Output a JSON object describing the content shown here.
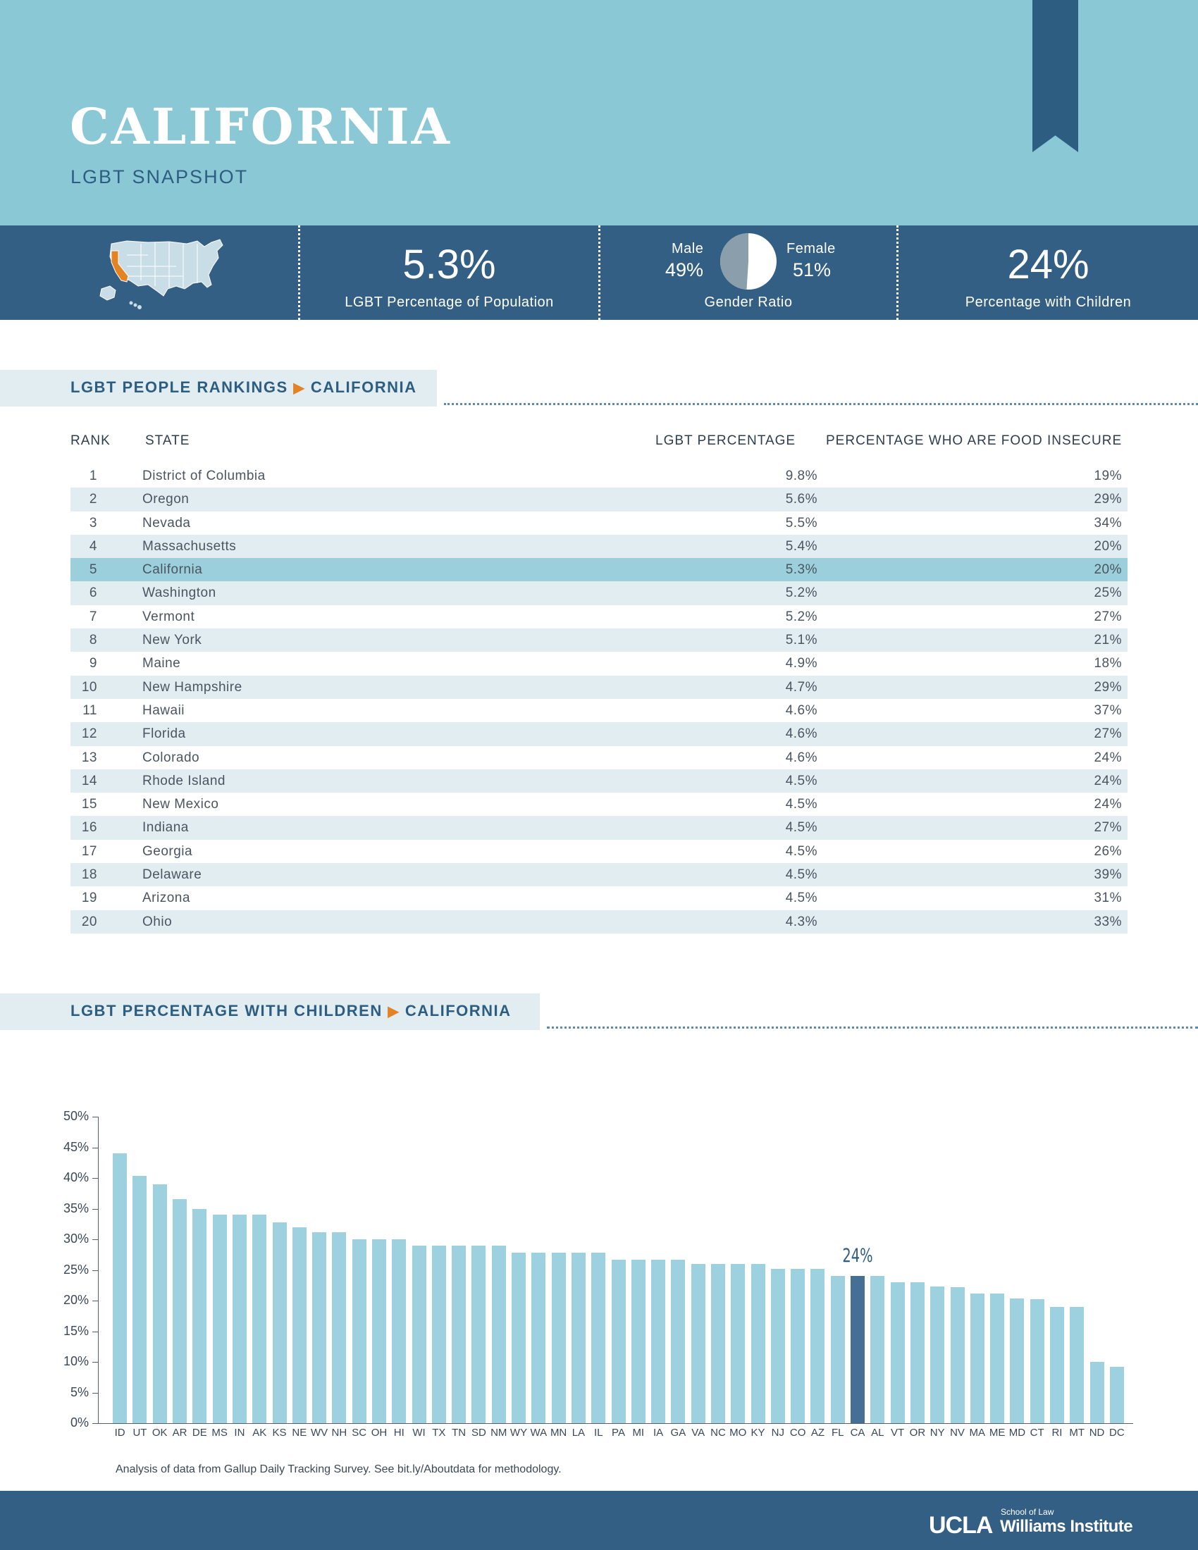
{
  "header": {
    "title": "CALIFORNIA",
    "subtitle": "LGBT SNAPSHOT"
  },
  "stats": {
    "lgbt_pct": "5.3%",
    "lgbt_pct_label": "LGBT Percentage of Population",
    "male_label": "Male",
    "male_pct": "49%",
    "female_label": "Female",
    "female_pct": "51%",
    "gender_label": "Gender Ratio",
    "male_fraction": 0.49,
    "children_pct": "24%",
    "children_label": "Percentage with Children",
    "map_icon": "us-map-icon",
    "highlight_color": "#e38323"
  },
  "rankings": {
    "title": "LGBT PEOPLE RANKINGS",
    "state": "CALIFORNIA",
    "headers": {
      "rank": "RANK",
      "state": "STATE",
      "pct": "LGBT PERCENTAGE",
      "food": "PERCENTAGE WHO ARE FOOD INSECURE"
    },
    "rows": [
      [
        "1",
        "District of Columbia",
        "9.8%",
        "19%"
      ],
      [
        "2",
        "Oregon",
        "5.6%",
        "29%"
      ],
      [
        "3",
        "Nevada",
        "5.5%",
        "34%"
      ],
      [
        "4",
        "Massachusetts",
        "5.4%",
        "20%"
      ],
      [
        "5",
        "California",
        "5.3%",
        "20%"
      ],
      [
        "6",
        "Washington",
        "5.2%",
        "25%"
      ],
      [
        "7",
        "Vermont",
        "5.2%",
        "27%"
      ],
      [
        "8",
        "New York",
        "5.1%",
        "21%"
      ],
      [
        "9",
        "Maine",
        "4.9%",
        "18%"
      ],
      [
        "10",
        "New Hampshire",
        "4.7%",
        "29%"
      ],
      [
        "11",
        "Hawaii",
        "4.6%",
        "37%"
      ],
      [
        "12",
        "Florida",
        "4.6%",
        "27%"
      ],
      [
        "13",
        "Colorado",
        "4.6%",
        "24%"
      ],
      [
        "14",
        "Rhode Island",
        "4.5%",
        "24%"
      ],
      [
        "15",
        "New Mexico",
        "4.5%",
        "24%"
      ],
      [
        "16",
        "Indiana",
        "4.5%",
        "27%"
      ],
      [
        "17",
        "Georgia",
        "4.5%",
        "26%"
      ],
      [
        "18",
        "Delaware",
        "4.5%",
        "39%"
      ],
      [
        "19",
        "Arizona",
        "4.5%",
        "31%"
      ],
      [
        "20",
        "Ohio",
        "4.3%",
        "33%"
      ]
    ],
    "highlight_index": 4
  },
  "children_section": {
    "title": "LGBT PERCENTAGE WITH CHILDREN",
    "state": "CALIFORNIA"
  },
  "chart_data": {
    "type": "bar",
    "categories": [
      "ID",
      "UT",
      "OK",
      "AR",
      "DE",
      "MS",
      "IN",
      "AK",
      "KS",
      "NE",
      "WV",
      "NH",
      "SC",
      "OH",
      "HI",
      "WI",
      "TX",
      "TN",
      "SD",
      "NM",
      "WY",
      "WA",
      "MN",
      "LA",
      "IL",
      "PA",
      "MI",
      "IA",
      "GA",
      "VA",
      "NC",
      "MO",
      "KY",
      "NJ",
      "CO",
      "AZ",
      "FL",
      "CA",
      "AL",
      "VT",
      "OR",
      "NY",
      "NV",
      "MA",
      "ME",
      "MD",
      "CT",
      "RI",
      "MT",
      "ND",
      "DC"
    ],
    "values": [
      44,
      40.3,
      39,
      36.5,
      35,
      34,
      34,
      34,
      32.8,
      32,
      31.2,
      31.2,
      30,
      30,
      30,
      29,
      29,
      29,
      29,
      29,
      27.8,
      27.8,
      27.8,
      27.8,
      27.8,
      26.7,
      26.7,
      26.7,
      26.7,
      26,
      26,
      26,
      26,
      25.2,
      25.2,
      25.2,
      24,
      24,
      24,
      23,
      23,
      22.3,
      22.2,
      21.2,
      21.2,
      20.3,
      20.2,
      19,
      19,
      10,
      9.2
    ],
    "highlight_category": "CA",
    "highlight_label": "24%",
    "ylim": [
      0,
      50
    ],
    "yticks": [
      "0%",
      "5%",
      "10%",
      "15%",
      "20%",
      "25%",
      "30%",
      "35%",
      "40%",
      "45%",
      "50%"
    ],
    "xlabel": "",
    "ylabel": "",
    "bar_color": "#9dd1df",
    "highlight_color": "#466f95"
  },
  "note": "Analysis of data from Gallup Daily Tracking Survey. See bit.ly/Aboutdata for methodology.",
  "footer": {
    "logo_main": "UCLA",
    "logo_small": "School of Law",
    "logo_name": "Williams Institute"
  }
}
